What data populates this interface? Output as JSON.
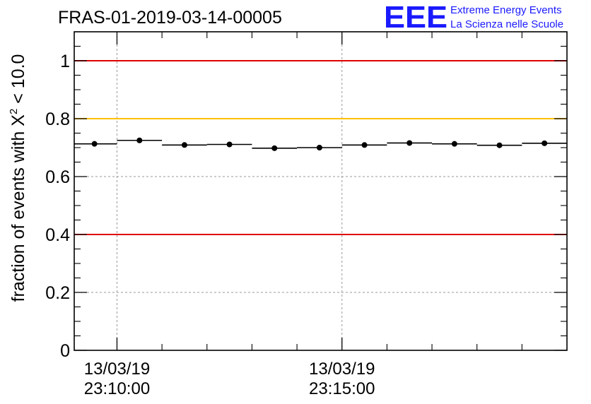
{
  "chart_data": {
    "type": "scatter",
    "title": "FRAS-01-2019-03-14-00005",
    "ylabel_prefix": "fraction of events with ",
    "ylabel_symbol": "X",
    "ylabel_sup": "2",
    "ylabel_suffix": " < 10.0",
    "xlabel": "",
    "ylim": [
      0,
      1.1
    ],
    "xlim_seconds": [
      -95,
      1000
    ],
    "y_ticks": [
      {
        "value": 0,
        "label": "0"
      },
      {
        "value": 0.2,
        "label": "0.2"
      },
      {
        "value": 0.4,
        "label": "0.4"
      },
      {
        "value": 0.6,
        "label": "0.6"
      },
      {
        "value": 0.8,
        "label": "0.8"
      },
      {
        "value": 1,
        "label": "1"
      }
    ],
    "x_major_ticks": [
      {
        "seconds": 0,
        "date": "13/03/19",
        "time": "23:10:00"
      },
      {
        "seconds": 500,
        "date": "13/03/19",
        "time": "23:15:00"
      }
    ],
    "x_minor_tick_seconds": [
      100,
      200,
      300,
      400,
      600,
      700,
      800,
      900
    ],
    "grid": true,
    "reference_lines": [
      {
        "y": 1.0,
        "color": "#e00000"
      },
      {
        "y": 0.8,
        "color": "#ffc000"
      },
      {
        "y": 0.4,
        "color": "#e00000"
      }
    ],
    "series": [
      {
        "name": "fraction",
        "bin_width_seconds": 100,
        "x_seconds": [
          -50,
          50,
          150,
          250,
          350,
          450,
          550,
          650,
          750,
          850,
          950
        ],
        "values": [
          0.713,
          0.725,
          0.709,
          0.711,
          0.698,
          0.7,
          0.709,
          0.716,
          0.713,
          0.708,
          0.715
        ]
      }
    ]
  },
  "logo": {
    "letters": "EEE",
    "line1": "Extreme Energy Events",
    "line2": "La Scienza nelle Scuole",
    "color": "#1a1aff"
  }
}
